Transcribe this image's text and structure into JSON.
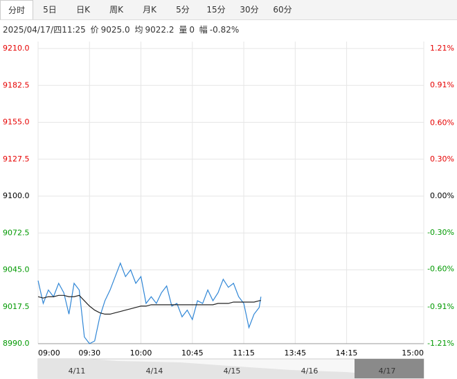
{
  "tabs": [
    "分时",
    "5日",
    "日K",
    "周K",
    "月K",
    "5分",
    "15分",
    "30分",
    "60分"
  ],
  "info": {
    "time": "2025/04/17/四11:25",
    "price_label": "价",
    "price": "9025.0",
    "avg_label": "均",
    "avg": "9022.2",
    "vol_label": "量",
    "vol": "0",
    "range_label": "幅",
    "range": "-0.82%"
  },
  "navigator": {
    "dates": [
      "4/11",
      "4/14",
      "4/15",
      "4/16",
      "4/17"
    ]
  },
  "chart_data": {
    "type": "line",
    "x": [
      0,
      3,
      6,
      9,
      12,
      15,
      18,
      21,
      24,
      27,
      30,
      33,
      36,
      39,
      42,
      45,
      48,
      51,
      54,
      57,
      60,
      63,
      66,
      69,
      72,
      75,
      78,
      81,
      84,
      87,
      90,
      93,
      96,
      99,
      102,
      105,
      108,
      111,
      114,
      117,
      120,
      123,
      126,
      129,
      130
    ],
    "series": [
      {
        "color": "#2f86d6",
        "values": [
          9037,
          9020,
          9030,
          9025,
          9035,
          9028,
          9012,
          9035,
          9030,
          8995,
          8990,
          8992,
          9010,
          9022,
          9030,
          9040,
          9050,
          9040,
          9045,
          9035,
          9040,
          9020,
          9025,
          9020,
          9028,
          9033,
          9018,
          9020,
          9010,
          9015,
          9008,
          9022,
          9020,
          9030,
          9022,
          9028,
          9038,
          9032,
          9035,
          9025,
          9020,
          9002,
          9012,
          9017,
          9025
        ]
      },
      {
        "color": "#222222",
        "values": [
          9025,
          9024,
          9025,
          9025,
          9026,
          9026,
          9025,
          9025,
          9026,
          9022,
          9018,
          9015,
          9013,
          9012,
          9012,
          9013,
          9014,
          9015,
          9016,
          9017,
          9018,
          9018,
          9019,
          9019,
          9019,
          9019,
          9019,
          9019,
          9019,
          9019,
          9019,
          9019,
          9019,
          9019,
          9019,
          9020,
          9020,
          9020,
          9021,
          9021,
          9021,
          9021,
          9021,
          9022,
          9022.2
        ]
      }
    ],
    "xlim": [
      0,
      225
    ],
    "xticks": [
      {
        "value": 0,
        "label": "09:00"
      },
      {
        "value": 30,
        "label": "09:30"
      },
      {
        "value": 60,
        "label": "10:00"
      },
      {
        "value": 90,
        "label": "10:45"
      },
      {
        "value": 120,
        "label": "11:15"
      },
      {
        "value": 150,
        "label": "13:45"
      },
      {
        "value": 180,
        "label": "14:15"
      },
      {
        "value": 225,
        "label": "15:00"
      }
    ],
    "ylim": [
      8990,
      9210
    ],
    "yticks": [
      {
        "value": 9210,
        "label": "9210.0"
      },
      {
        "value": 9182.5,
        "label": "9182.5"
      },
      {
        "value": 9155,
        "label": "9155.0"
      },
      {
        "value": 9127.5,
        "label": "9127.5"
      },
      {
        "value": 9100,
        "label": "9100.0"
      },
      {
        "value": 9072.5,
        "label": "9072.5"
      },
      {
        "value": 9045,
        "label": "9045.0"
      },
      {
        "value": 9017.5,
        "label": "9017.5"
      },
      {
        "value": 8990,
        "label": "8990.0"
      }
    ],
    "y2lim": [
      -1.21,
      1.21
    ],
    "y2ticks": [
      {
        "value": 1.21,
        "label": "1.21%"
      },
      {
        "value": 0.91,
        "label": "0.91%"
      },
      {
        "value": 0.6,
        "label": "0.60%"
      },
      {
        "value": 0.3,
        "label": "0.30%"
      },
      {
        "value": 0,
        "label": "0.00%"
      },
      {
        "value": -0.3,
        "label": "-0.30%"
      },
      {
        "value": -0.6,
        "label": "-0.60%"
      },
      {
        "value": -0.91,
        "label": "-0.91%"
      },
      {
        "value": -1.21,
        "label": "-1.21%"
      }
    ],
    "grid": true
  }
}
